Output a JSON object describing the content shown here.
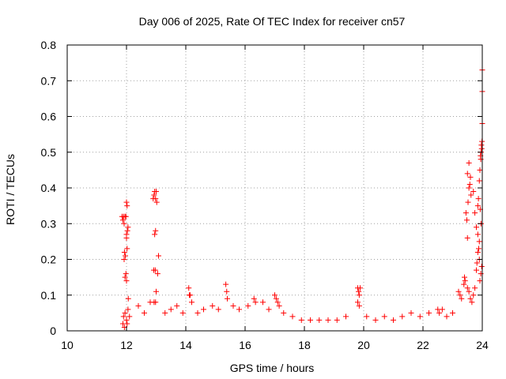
{
  "chart_data": {
    "type": "scatter",
    "title": "Day 006 of 2025, Rate Of TEC Index for receiver cn57",
    "xlabel": "GPS time / hours",
    "ylabel": "ROTI / TECUs",
    "xlim": [
      10,
      24
    ],
    "ylim": [
      0,
      0.8
    ],
    "xticks": [
      10,
      12,
      14,
      16,
      18,
      20,
      22,
      24
    ],
    "yticks": [
      0,
      0.1,
      0.2,
      0.3,
      0.4,
      0.5,
      0.6,
      0.7,
      0.8
    ],
    "xtick_labels": [
      "10",
      "12",
      "14",
      "16",
      "18",
      "20",
      "22",
      "24"
    ],
    "ytick_labels": [
      "0",
      "0.1",
      "0.2",
      "0.3",
      "0.4",
      "0.5",
      "0.6",
      "0.7",
      "0.8"
    ],
    "grid": true,
    "marker": "+",
    "color": "#ff0000",
    "series": [
      {
        "name": "ROTI",
        "points": [
          [
            11.85,
            0.32
          ],
          [
            11.88,
            0.31
          ],
          [
            11.9,
            0.32
          ],
          [
            11.92,
            0.3
          ],
          [
            11.95,
            0.32
          ],
          [
            11.98,
            0.32
          ],
          [
            12.0,
            0.36
          ],
          [
            12.02,
            0.35
          ],
          [
            12.0,
            0.27
          ],
          [
            12.03,
            0.28
          ],
          [
            12.05,
            0.29
          ],
          [
            12.0,
            0.26
          ],
          [
            11.93,
            0.22
          ],
          [
            11.96,
            0.21
          ],
          [
            11.98,
            0.16
          ],
          [
            12.0,
            0.14
          ],
          [
            11.95,
            0.15
          ],
          [
            12.02,
            0.23
          ],
          [
            11.92,
            0.2
          ],
          [
            12.06,
            0.09
          ],
          [
            11.9,
            0.04
          ],
          [
            11.95,
            0.05
          ],
          [
            12.0,
            0.03
          ],
          [
            12.05,
            0.06
          ],
          [
            12.1,
            0.04
          ],
          [
            11.88,
            0.02
          ],
          [
            11.93,
            0.01
          ],
          [
            12.02,
            0.02
          ],
          [
            12.9,
            0.37
          ],
          [
            12.93,
            0.38
          ],
          [
            12.95,
            0.39
          ],
          [
            12.98,
            0.37
          ],
          [
            13.0,
            0.39
          ],
          [
            13.02,
            0.36
          ],
          [
            12.95,
            0.27
          ],
          [
            12.98,
            0.28
          ],
          [
            12.92,
            0.17
          ],
          [
            12.97,
            0.17
          ],
          [
            13.05,
            0.16
          ],
          [
            13.08,
            0.21
          ],
          [
            13.0,
            0.11
          ],
          [
            12.93,
            0.08
          ],
          [
            12.98,
            0.08
          ],
          [
            14.1,
            0.12
          ],
          [
            14.12,
            0.1
          ],
          [
            14.15,
            0.1
          ],
          [
            14.2,
            0.08
          ],
          [
            15.35,
            0.13
          ],
          [
            15.38,
            0.11
          ],
          [
            15.4,
            0.09
          ],
          [
            16.3,
            0.09
          ],
          [
            16.35,
            0.08
          ],
          [
            17.0,
            0.1
          ],
          [
            17.05,
            0.09
          ],
          [
            17.1,
            0.08
          ],
          [
            17.15,
            0.07
          ],
          [
            19.8,
            0.12
          ],
          [
            19.83,
            0.11
          ],
          [
            19.85,
            0.1
          ],
          [
            19.88,
            0.12
          ],
          [
            19.8,
            0.08
          ],
          [
            19.85,
            0.07
          ],
          [
            22.5,
            0.06
          ],
          [
            22.55,
            0.05
          ],
          [
            22.65,
            0.06
          ],
          [
            23.2,
            0.11
          ],
          [
            23.25,
            0.1
          ],
          [
            23.3,
            0.09
          ],
          [
            23.4,
            0.15
          ],
          [
            23.42,
            0.14
          ],
          [
            23.38,
            0.13
          ],
          [
            23.5,
            0.12
          ],
          [
            23.55,
            0.11
          ],
          [
            23.6,
            0.09
          ],
          [
            23.65,
            0.08
          ],
          [
            23.7,
            0.1
          ],
          [
            23.75,
            0.12
          ],
          [
            23.8,
            0.17
          ],
          [
            23.82,
            0.19
          ],
          [
            23.85,
            0.22
          ],
          [
            23.88,
            0.23
          ],
          [
            23.9,
            0.2
          ],
          [
            23.92,
            0.14
          ],
          [
            23.95,
            0.16
          ],
          [
            23.98,
            0.18
          ],
          [
            23.45,
            0.33
          ],
          [
            23.48,
            0.31
          ],
          [
            23.5,
            0.26
          ],
          [
            23.52,
            0.36
          ],
          [
            23.55,
            0.4
          ],
          [
            23.58,
            0.41
          ],
          [
            23.6,
            0.43
          ],
          [
            23.62,
            0.38
          ],
          [
            23.5,
            0.44
          ],
          [
            23.55,
            0.47
          ],
          [
            23.7,
            0.39
          ],
          [
            23.75,
            0.33
          ],
          [
            23.8,
            0.29
          ],
          [
            23.85,
            0.35
          ],
          [
            23.87,
            0.37
          ],
          [
            23.9,
            0.42
          ],
          [
            23.92,
            0.45
          ],
          [
            23.95,
            0.48
          ],
          [
            23.97,
            0.52
          ],
          [
            23.99,
            0.53
          ],
          [
            24.0,
            0.58
          ],
          [
            23.98,
            0.51
          ],
          [
            23.96,
            0.5
          ],
          [
            23.94,
            0.49
          ],
          [
            24.0,
            0.67
          ],
          [
            24.0,
            0.73
          ],
          [
            23.93,
            0.34
          ],
          [
            23.96,
            0.3
          ],
          [
            23.85,
            0.27
          ],
          [
            23.9,
            0.25
          ],
          [
            12.4,
            0.07
          ],
          [
            12.6,
            0.05
          ],
          [
            12.8,
            0.08
          ],
          [
            13.3,
            0.05
          ],
          [
            13.5,
            0.06
          ],
          [
            13.7,
            0.07
          ],
          [
            13.9,
            0.05
          ],
          [
            14.4,
            0.05
          ],
          [
            14.6,
            0.06
          ],
          [
            14.9,
            0.07
          ],
          [
            15.1,
            0.06
          ],
          [
            15.6,
            0.07
          ],
          [
            15.8,
            0.06
          ],
          [
            16.1,
            0.07
          ],
          [
            16.6,
            0.08
          ],
          [
            16.8,
            0.06
          ],
          [
            17.3,
            0.05
          ],
          [
            17.6,
            0.04
          ],
          [
            17.9,
            0.03
          ],
          [
            18.2,
            0.03
          ],
          [
            18.5,
            0.03
          ],
          [
            18.8,
            0.03
          ],
          [
            19.1,
            0.03
          ],
          [
            19.4,
            0.04
          ],
          [
            20.1,
            0.04
          ],
          [
            20.4,
            0.03
          ],
          [
            20.7,
            0.04
          ],
          [
            21.0,
            0.03
          ],
          [
            21.3,
            0.04
          ],
          [
            21.6,
            0.05
          ],
          [
            21.9,
            0.04
          ],
          [
            22.2,
            0.05
          ],
          [
            22.8,
            0.04
          ],
          [
            23.0,
            0.05
          ]
        ]
      }
    ]
  }
}
